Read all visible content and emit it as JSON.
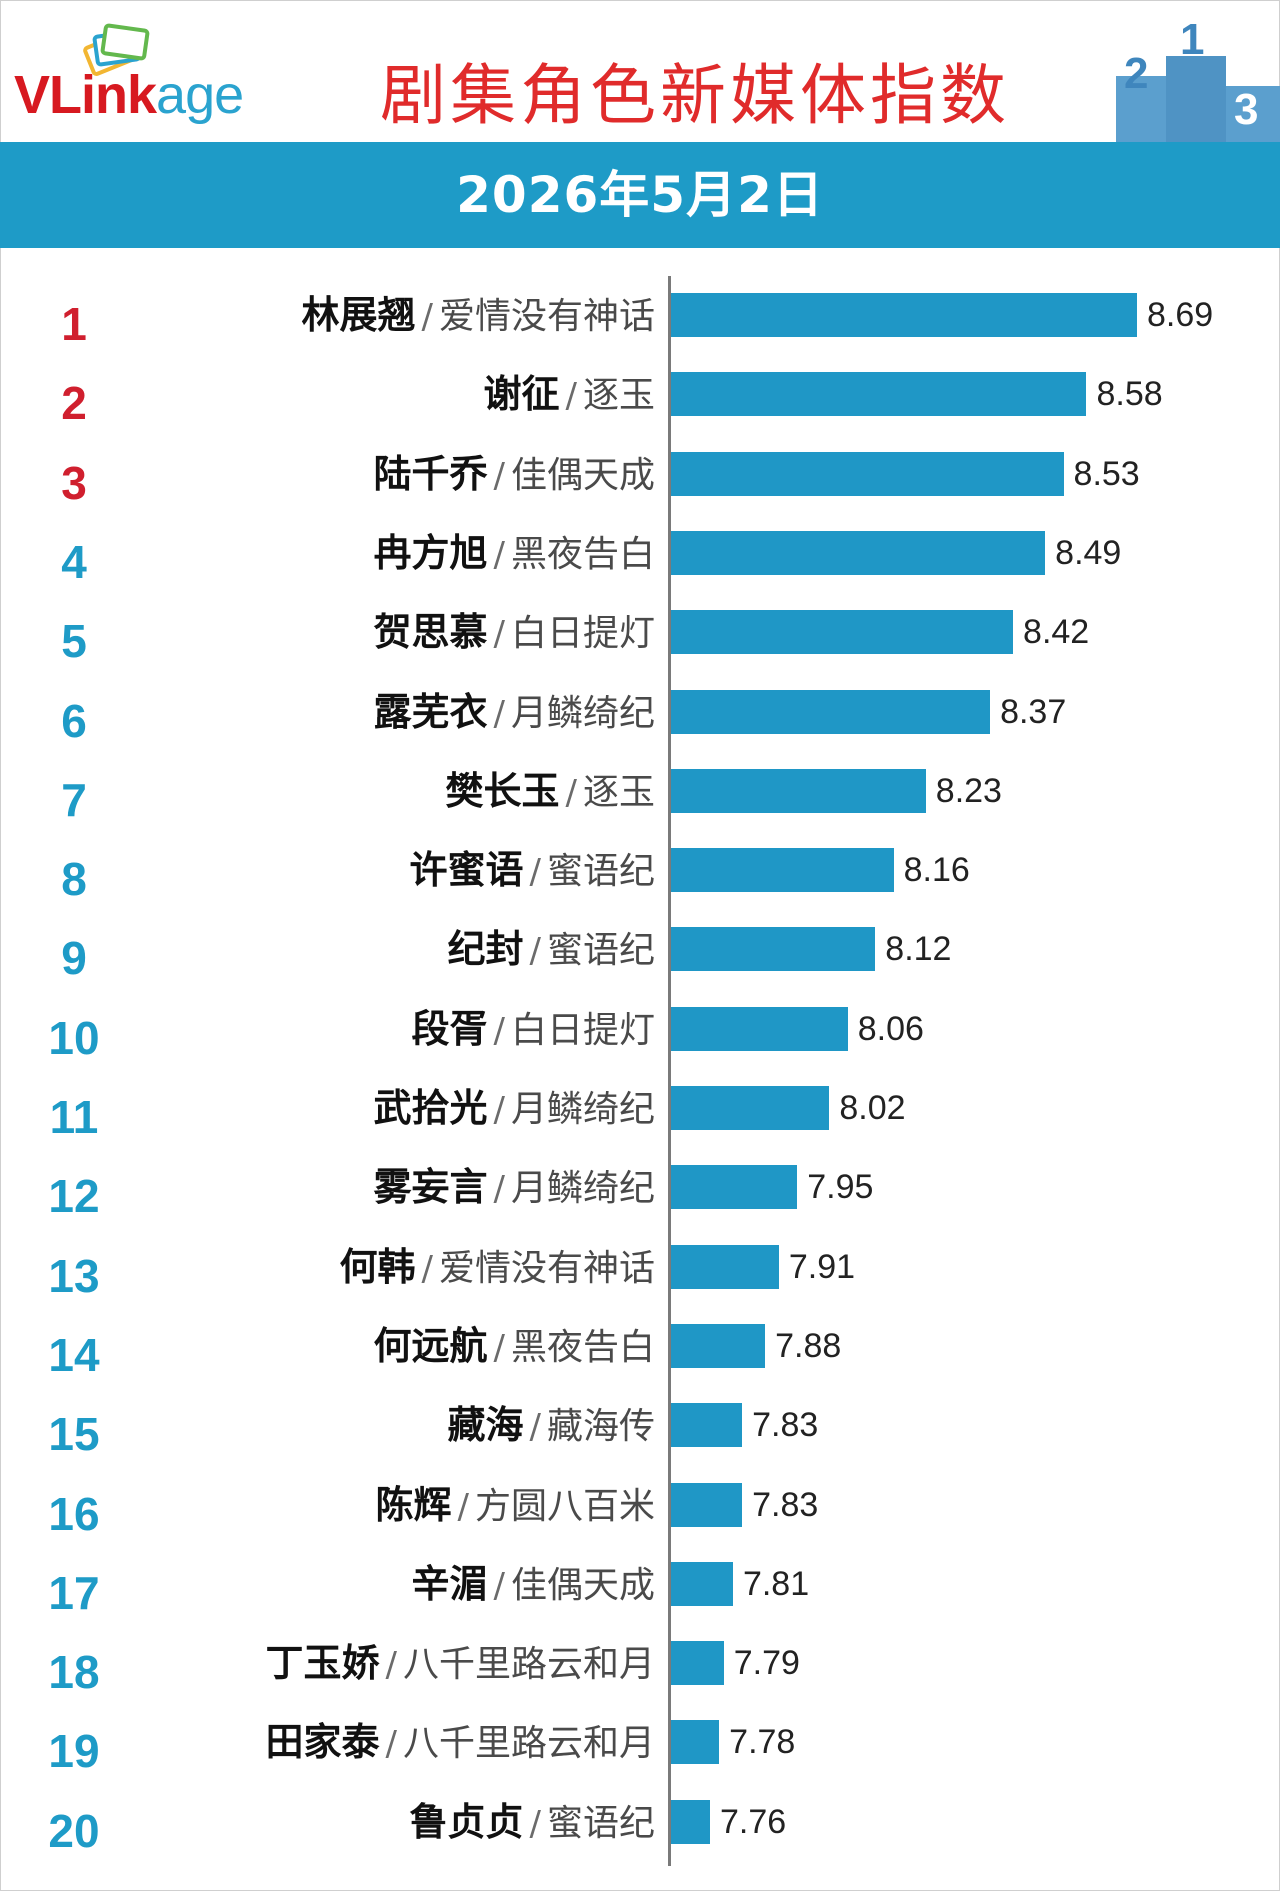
{
  "header": {
    "logo": {
      "v": "V",
      "link": "Link",
      "age": "age"
    },
    "title": "剧集角色新媒体指数",
    "podium_digits": [
      "2",
      "1",
      "3"
    ],
    "date": "2026年5月2日"
  },
  "colors": {
    "bar": "#1f97c6",
    "date_bar": "#1e9bc7",
    "title": "#e02b2b",
    "top_rank": "#d01f2e",
    "rank": "#1e9bc7"
  },
  "chart_data": {
    "type": "bar",
    "orientation": "horizontal",
    "title": "剧集角色新媒体指数",
    "subtitle": "2026年5月2日",
    "rows": [
      {
        "rank": "1",
        "character": "林展翘",
        "show": "爱情没有神话",
        "value": 8.69
      },
      {
        "rank": "2",
        "character": "谢征",
        "show": "逐玉",
        "value": 8.58
      },
      {
        "rank": "3",
        "character": "陆千乔",
        "show": "佳偶天成",
        "value": 8.53
      },
      {
        "rank": "4",
        "character": "冉方旭",
        "show": "黑夜告白",
        "value": 8.49
      },
      {
        "rank": "5",
        "character": "贺思慕",
        "show": "白日提灯",
        "value": 8.42
      },
      {
        "rank": "6",
        "character": "露芜衣",
        "show": "月鳞绮纪",
        "value": 8.37
      },
      {
        "rank": "7",
        "character": "樊长玉",
        "show": "逐玉",
        "value": 8.23
      },
      {
        "rank": "8",
        "character": "许蜜语",
        "show": "蜜语纪",
        "value": 8.16
      },
      {
        "rank": "9",
        "character": "纪封",
        "show": "蜜语纪",
        "value": 8.12
      },
      {
        "rank": "10",
        "character": "段胥",
        "show": "白日提灯",
        "value": 8.06
      },
      {
        "rank": "11",
        "character": "武拾光",
        "show": "月鳞绮纪",
        "value": 8.02
      },
      {
        "rank": "12",
        "character": "雾妄言",
        "show": "月鳞绮纪",
        "value": 7.95
      },
      {
        "rank": "13",
        "character": "何韩",
        "show": "爱情没有神话",
        "value": 7.91
      },
      {
        "rank": "14",
        "character": "何远航",
        "show": "黑夜告白",
        "value": 7.88
      },
      {
        "rank": "15",
        "character": "藏海",
        "show": "藏海传",
        "value": 7.83
      },
      {
        "rank": "16",
        "character": "陈辉",
        "show": "方圆八百米",
        "value": 7.83
      },
      {
        "rank": "17",
        "character": "辛湄",
        "show": "佳偶天成",
        "value": 7.81
      },
      {
        "rank": "18",
        "character": "丁玉娇",
        "show": "八千里路云和月",
        "value": 7.79
      },
      {
        "rank": "19",
        "character": "田家泰",
        "show": "八千里路云和月",
        "value": 7.78
      },
      {
        "rank": "20",
        "character": "鲁贞贞",
        "show": "蜜语纪",
        "value": 7.76
      }
    ],
    "separator": "/",
    "value_format": "2 decimals",
    "grid": false,
    "legend": "none"
  }
}
